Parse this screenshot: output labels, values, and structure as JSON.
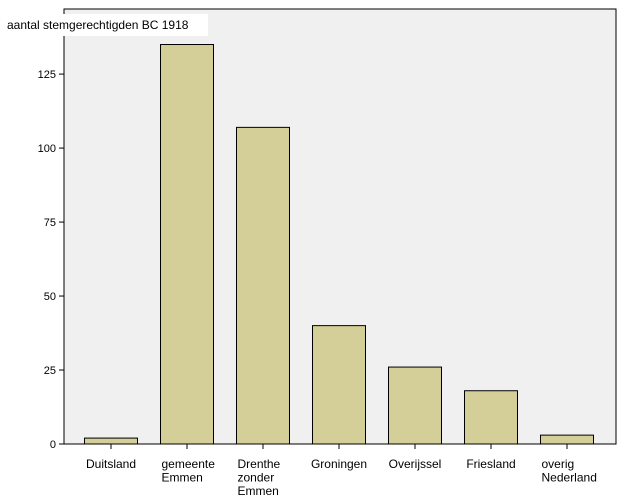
{
  "chart_data": {
    "type": "bar",
    "ylabel": "aantal stemgerechtigden BC 1918",
    "categories": [
      [
        "Duitsland"
      ],
      [
        "gemeente",
        "Emmen"
      ],
      [
        "Drenthe",
        "zonder",
        "Emmen"
      ],
      [
        "Groningen"
      ],
      [
        "Overijssel"
      ],
      [
        "Friesland"
      ],
      [
        "overig",
        "Nederland"
      ]
    ],
    "values": [
      2,
      135,
      107,
      40,
      26,
      18,
      3
    ],
    "ylim": [
      0,
      147
    ],
    "yticks": [
      0,
      25,
      50,
      75,
      100,
      125
    ],
    "grid": false,
    "colors": {
      "plot_bg": "#f0f0f0",
      "bar_fill": "#d4cf98",
      "bar_stroke": "#000000"
    }
  }
}
